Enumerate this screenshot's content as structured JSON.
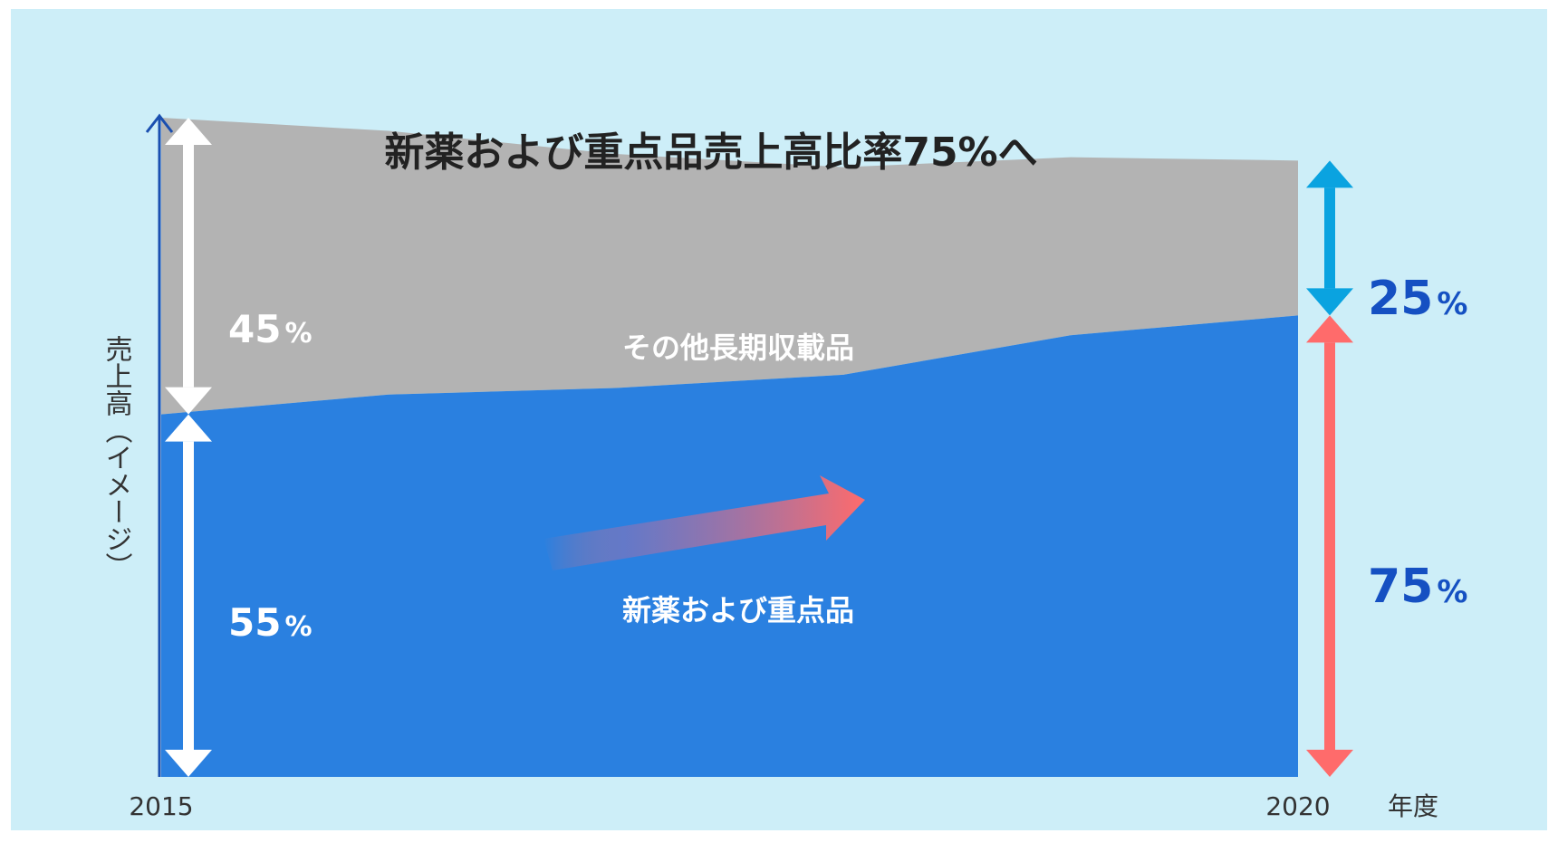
{
  "chart_data": {
    "type": "area",
    "title": "新薬および重点品売上高比率75%へ",
    "ylabel": "売上高（イメージ）",
    "xlabel": "年度",
    "x_start_label": "2015",
    "x_end_label": "2020",
    "ylim": [
      0,
      100
    ],
    "x": [
      2015,
      2016,
      2017,
      2018,
      2019,
      2020
    ],
    "series": [
      {
        "name": "新薬および重点品",
        "values": [
          55,
          58,
          59,
          61,
          67,
          70
        ],
        "color": "#2a80e0"
      },
      {
        "name": "その他長期収載品",
        "values": [
          45,
          40,
          35.5,
          31.5,
          27,
          23.5
        ],
        "color": "#b3b3b3"
      }
    ],
    "share_start": {
      "other": "45",
      "focus": "55",
      "unit": "%"
    },
    "share_end": {
      "other": "25",
      "focus": "75",
      "unit": "%"
    },
    "colors": {
      "background": "#cdeef8",
      "focus_area": "#2a80e0",
      "other_area": "#b3b3b3",
      "axis": "#1a4fb0",
      "end_other_arrow": "#0aa3e0",
      "end_focus_arrow": "#ff6b6b",
      "end_label": "#1550c2",
      "title": "#222222"
    },
    "legend": "inline-labels"
  }
}
